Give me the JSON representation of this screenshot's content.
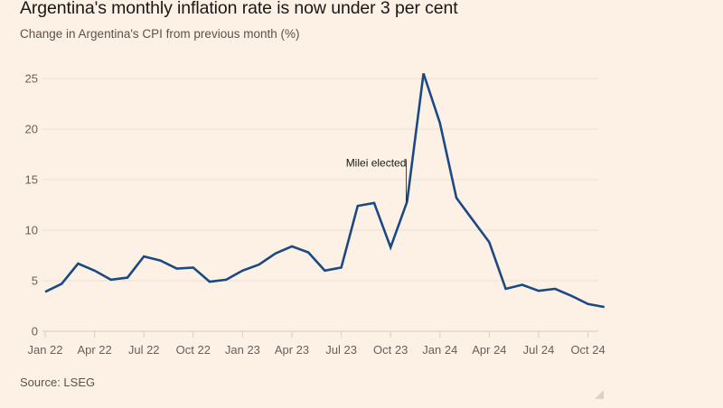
{
  "header": {
    "title": "Argentina's monthly inflation rate is now under 3 per cent",
    "subtitle": "Change in Argentina's CPI from previous month (%)"
  },
  "footer": {
    "source": "Source: LSEG"
  },
  "colors": {
    "background": "#fdf1e6",
    "line": "#1b4a82",
    "grid": "#ecdfd4",
    "text": "#66605c"
  },
  "chart_data": {
    "type": "line",
    "title": "Argentina's monthly inflation rate is now under 3 per cent",
    "subtitle": "Change in Argentina's CPI from previous month (%)",
    "xlabel": "",
    "ylabel": "",
    "ylim": [
      0,
      25
    ],
    "yticks": [
      0,
      5,
      10,
      15,
      20,
      25
    ],
    "grid": true,
    "x": [
      "2022-01",
      "2022-02",
      "2022-03",
      "2022-04",
      "2022-05",
      "2022-06",
      "2022-07",
      "2022-08",
      "2022-09",
      "2022-10",
      "2022-11",
      "2022-12",
      "2023-01",
      "2023-02",
      "2023-03",
      "2023-04",
      "2023-05",
      "2023-06",
      "2023-07",
      "2023-08",
      "2023-09",
      "2023-10",
      "2023-11",
      "2023-12",
      "2024-01",
      "2024-02",
      "2024-03",
      "2024-04",
      "2024-05",
      "2024-06",
      "2024-07",
      "2024-08",
      "2024-09",
      "2024-10",
      "2024-11"
    ],
    "xtick_labels": [
      {
        "label": "Jan 22",
        "index": 0
      },
      {
        "label": "Apr 22",
        "index": 3
      },
      {
        "label": "Jul 22",
        "index": 6
      },
      {
        "label": "Oct 22",
        "index": 9
      },
      {
        "label": "Jan 23",
        "index": 12
      },
      {
        "label": "Apr 23",
        "index": 15
      },
      {
        "label": "Jul 23",
        "index": 18
      },
      {
        "label": "Oct 23",
        "index": 21
      },
      {
        "label": "Jan 24",
        "index": 24
      },
      {
        "label": "Apr 24",
        "index": 27
      },
      {
        "label": "Jul 24",
        "index": 30
      },
      {
        "label": "Oct 24",
        "index": 33
      }
    ],
    "series": [
      {
        "name": "Monthly CPI change (%)",
        "values": [
          3.9,
          4.7,
          6.7,
          6.0,
          5.1,
          5.3,
          7.4,
          7.0,
          6.2,
          6.3,
          4.9,
          5.1,
          6.0,
          6.6,
          7.7,
          8.4,
          7.8,
          6.0,
          6.3,
          12.4,
          12.7,
          8.3,
          12.8,
          25.5,
          20.6,
          13.2,
          11.0,
          8.8,
          4.2,
          4.6,
          4.0,
          4.2,
          3.5,
          2.7,
          2.4
        ]
      }
    ],
    "annotations": [
      {
        "text": "Milei elected",
        "index": 22,
        "value": 12.8
      }
    ]
  }
}
